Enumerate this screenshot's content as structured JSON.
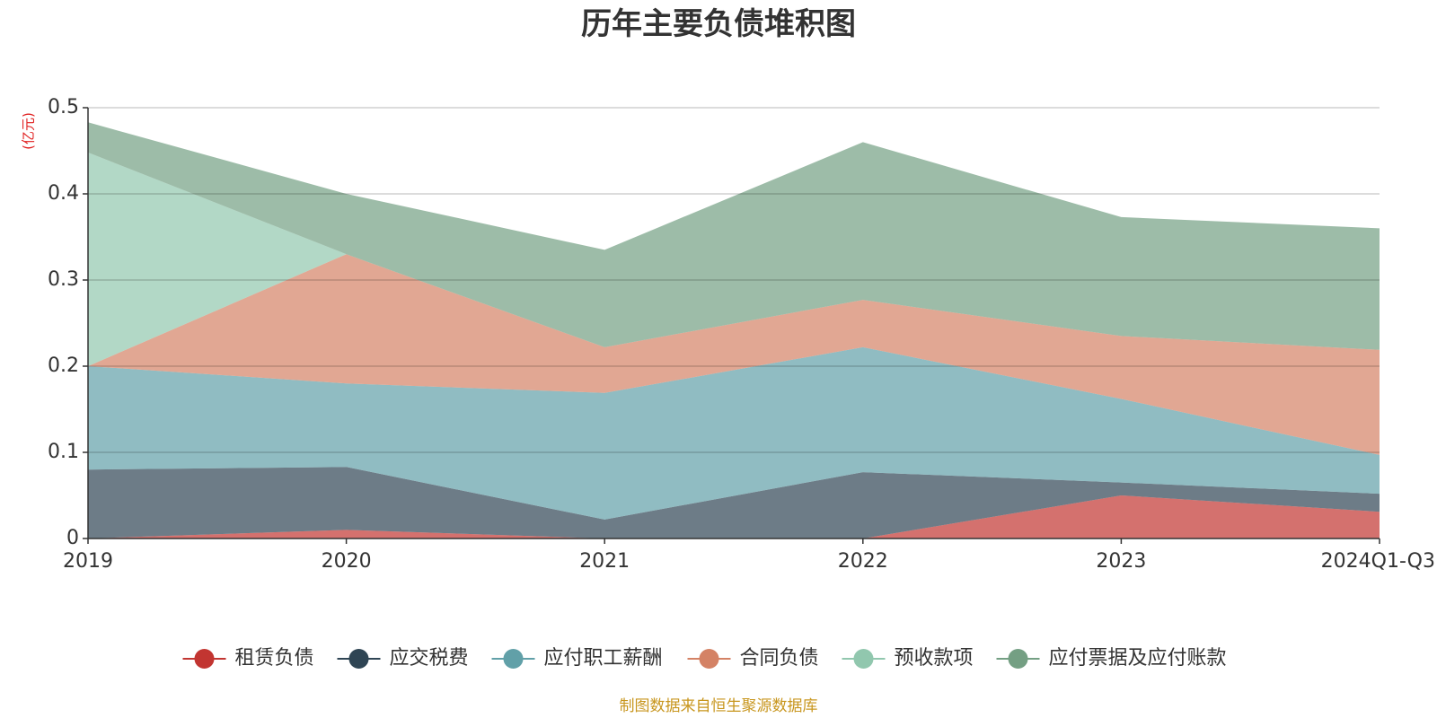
{
  "chart_data": {
    "type": "area",
    "stacked": true,
    "title": "历年主要负债堆积图",
    "unit_label": "(亿元)",
    "source": "制图数据来自恒生聚源数据库",
    "categories": [
      "2019",
      "2020",
      "2021",
      "2022",
      "2023",
      "2024Q1-Q3"
    ],
    "ylim": [
      0,
      0.5
    ],
    "yticks": [
      0,
      0.1,
      0.2,
      0.3,
      0.4,
      0.5
    ],
    "ytick_labels": [
      "0",
      "0.1",
      "0.2",
      "0.3",
      "0.4",
      "0.5"
    ],
    "grid": true,
    "legend_position": "bottom",
    "series": [
      {
        "name": "租赁负债",
        "color": "#c23531",
        "values": [
          0.0,
          0.01,
          0.0,
          0.0,
          0.05,
          0.031
        ]
      },
      {
        "name": "应交税费",
        "color": "#2f4554",
        "values": [
          0.08,
          0.073,
          0.022,
          0.077,
          0.015,
          0.021
        ]
      },
      {
        "name": "应付职工薪酬",
        "color": "#61a0a8",
        "values": [
          0.12,
          0.097,
          0.147,
          0.145,
          0.097,
          0.045
        ]
      },
      {
        "name": "合同负债",
        "color": "#d48265",
        "values": [
          0.0,
          0.15,
          0.053,
          0.055,
          0.073,
          0.122
        ]
      },
      {
        "name": "预收款项",
        "color": "#91c7ae",
        "values": [
          0.248,
          0.0,
          0.0,
          0.0,
          0.0,
          0.0
        ]
      },
      {
        "name": "应付票据及应付账款",
        "color": "#749f83",
        "values": [
          0.035,
          0.07,
          0.113,
          0.183,
          0.138,
          0.141
        ]
      }
    ]
  }
}
